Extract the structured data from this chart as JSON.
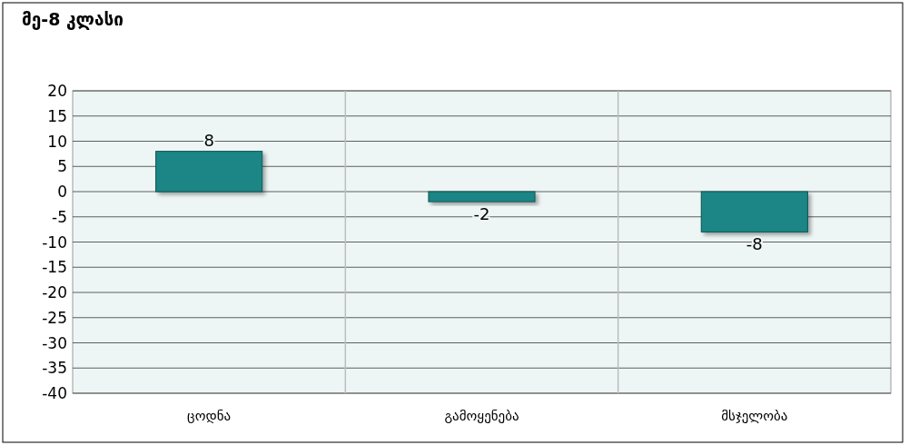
{
  "chart_data": {
    "type": "bar",
    "title": "მე-8 კლასი",
    "categories": [
      "ცოდნა",
      "გამოყენება",
      "მსჯელობა"
    ],
    "values": [
      8,
      -2,
      -8
    ],
    "color": "#1b8585",
    "ylim": [
      -40,
      20
    ],
    "yticks": [
      -40,
      -35,
      -30,
      -25,
      -20,
      -15,
      -10,
      -5,
      0,
      5,
      10,
      15,
      20
    ],
    "grid": true,
    "data_labels": true
  }
}
